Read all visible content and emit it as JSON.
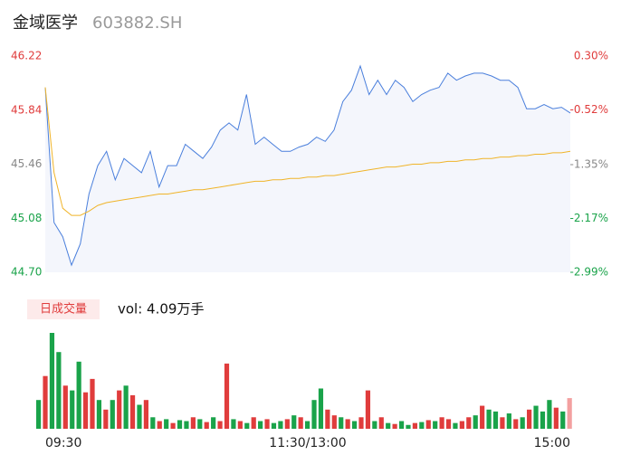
{
  "chart_data": {
    "type": "line",
    "title": "金域医学",
    "subtitle": "603882.SH",
    "x": [
      0,
      4,
      8,
      12,
      16,
      20,
      24,
      28,
      32,
      36,
      40,
      44,
      48,
      52,
      56,
      60,
      64,
      68,
      72,
      76,
      80,
      84,
      88,
      92,
      96,
      100,
      104,
      108,
      112,
      116,
      120,
      124,
      128,
      132,
      136,
      140,
      144,
      148,
      152,
      156,
      160,
      164,
      168,
      172,
      176,
      180,
      184,
      188,
      192,
      196,
      200,
      204,
      208,
      212,
      216,
      220,
      224,
      228,
      232,
      236,
      240
    ],
    "xlim": [
      0,
      240
    ],
    "xticks": [
      {
        "value": 0,
        "label": "09:30"
      },
      {
        "value": 120,
        "label": "11:30/13:00"
      },
      {
        "value": 240,
        "label": "15:00"
      }
    ],
    "series": [
      {
        "color": "#4a7fdc",
        "values": [
          46.0,
          45.05,
          44.95,
          44.75,
          44.9,
          45.25,
          45.45,
          45.55,
          45.35,
          45.5,
          45.45,
          45.4,
          45.55,
          45.3,
          45.45,
          45.45,
          45.6,
          45.55,
          45.5,
          45.58,
          45.7,
          45.75,
          45.7,
          45.95,
          45.6,
          45.65,
          45.6,
          45.55,
          45.55,
          45.58,
          45.6,
          45.65,
          45.62,
          45.7,
          45.9,
          45.98,
          46.15,
          45.95,
          46.05,
          45.95,
          46.05,
          46.0,
          45.9,
          45.95,
          45.98,
          46.0,
          46.1,
          46.05,
          46.08,
          46.1,
          46.1,
          46.08,
          46.05,
          46.05,
          46.0,
          45.85,
          45.85,
          45.88,
          45.85,
          45.86,
          45.82
        ]
      },
      {
        "color": "#f0b429",
        "values": [
          46.0,
          45.4,
          45.15,
          45.1,
          45.1,
          45.13,
          45.17,
          45.19,
          45.2,
          45.21,
          45.22,
          45.23,
          45.24,
          45.25,
          45.25,
          45.26,
          45.27,
          45.28,
          45.28,
          45.29,
          45.3,
          45.31,
          45.32,
          45.33,
          45.34,
          45.34,
          45.35,
          45.35,
          45.36,
          45.36,
          45.37,
          45.37,
          45.38,
          45.38,
          45.39,
          45.4,
          45.41,
          45.42,
          45.43,
          45.44,
          45.44,
          45.45,
          45.46,
          45.46,
          45.47,
          45.47,
          45.48,
          45.48,
          45.49,
          45.49,
          45.5,
          45.5,
          45.51,
          45.51,
          45.52,
          45.52,
          45.53,
          45.53,
          45.54,
          45.54,
          45.55
        ]
      }
    ],
    "ylim": [
      44.7,
      46.22
    ],
    "yticks": [
      {
        "value": 44.7,
        "label": "44.70",
        "color": "#1aa34a"
      },
      {
        "value": 45.08,
        "label": "45.08",
        "color": "#1aa34a"
      },
      {
        "value": 45.46,
        "label": "45.46",
        "color": "#888888"
      },
      {
        "value": 45.84,
        "label": "45.84",
        "color": "#e03c3c"
      },
      {
        "value": 46.22,
        "label": "46.22",
        "color": "#e03c3c"
      }
    ],
    "y2lim": [
      -2.99,
      0.3
    ],
    "y2ticks": [
      {
        "value": -2.99,
        "label": "-2.99%",
        "color": "#1aa34a"
      },
      {
        "value": -2.17,
        "label": "-2.17%",
        "color": "#1aa34a"
      },
      {
        "value": -1.35,
        "label": "-1.35%",
        "color": "#888888"
      },
      {
        "value": -0.52,
        "label": "-0.52%",
        "color": "#e03c3c"
      },
      {
        "value": 0.3,
        "label": "0.30%",
        "color": "#e03c3c"
      }
    ],
    "volume": {
      "tag": "日成交量",
      "label": "vol: 4.09万手",
      "values": [
        30,
        55,
        100,
        80,
        45,
        40,
        70,
        38,
        52,
        30,
        20,
        30,
        40,
        45,
        35,
        25,
        30,
        12,
        8,
        10,
        6,
        9,
        8,
        12,
        10,
        7,
        12,
        8,
        68,
        10,
        8,
        6,
        12,
        8,
        10,
        6,
        8,
        10,
        14,
        12,
        8,
        30,
        42,
        20,
        14,
        12,
        10,
        8,
        12,
        40,
        8,
        12,
        6,
        5,
        8,
        4,
        6,
        7,
        9,
        8,
        12,
        10,
        6,
        8,
        12,
        14,
        24,
        20,
        18,
        12,
        16,
        10,
        12,
        20,
        24,
        18,
        30,
        22,
        18,
        32
      ],
      "colors": [
        "#1aa34a",
        "#e03c3c",
        "#1aa34a",
        "#1aa34a",
        "#e03c3c",
        "#1aa34a",
        "#1aa34a",
        "#e03c3c",
        "#e03c3c",
        "#1aa34a",
        "#e03c3c",
        "#1aa34a",
        "#e03c3c",
        "#1aa34a",
        "#e03c3c",
        "#1aa34a",
        "#e03c3c",
        "#1aa34a",
        "#e03c3c",
        "#1aa34a",
        "#e03c3c",
        "#1aa34a",
        "#1aa34a",
        "#e03c3c",
        "#1aa34a",
        "#e03c3c",
        "#1aa34a",
        "#e03c3c",
        "#e03c3c",
        "#1aa34a",
        "#e03c3c",
        "#1aa34a",
        "#e03c3c",
        "#1aa34a",
        "#e03c3c",
        "#1aa34a",
        "#1aa34a",
        "#e03c3c",
        "#1aa34a",
        "#e03c3c",
        "#1aa34a",
        "#1aa34a",
        "#1aa34a",
        "#e03c3c",
        "#e03c3c",
        "#1aa34a",
        "#e03c3c",
        "#1aa34a",
        "#e03c3c",
        "#e03c3c",
        "#1aa34a",
        "#e03c3c",
        "#1aa34a",
        "#e03c3c",
        "#1aa34a",
        "#1aa34a",
        "#e03c3c",
        "#1aa34a",
        "#e03c3c",
        "#1aa34a",
        "#e03c3c",
        "#e03c3c",
        "#1aa34a",
        "#e03c3c",
        "#e03c3c",
        "#1aa34a",
        "#e03c3c",
        "#1aa34a",
        "#1aa34a",
        "#e03c3c",
        "#1aa34a",
        "#e03c3c",
        "#1aa34a",
        "#e03c3c",
        "#1aa34a",
        "#1aa34a",
        "#1aa34a",
        "#e03c3c",
        "#1aa34a",
        "#f3a0a0"
      ]
    }
  }
}
